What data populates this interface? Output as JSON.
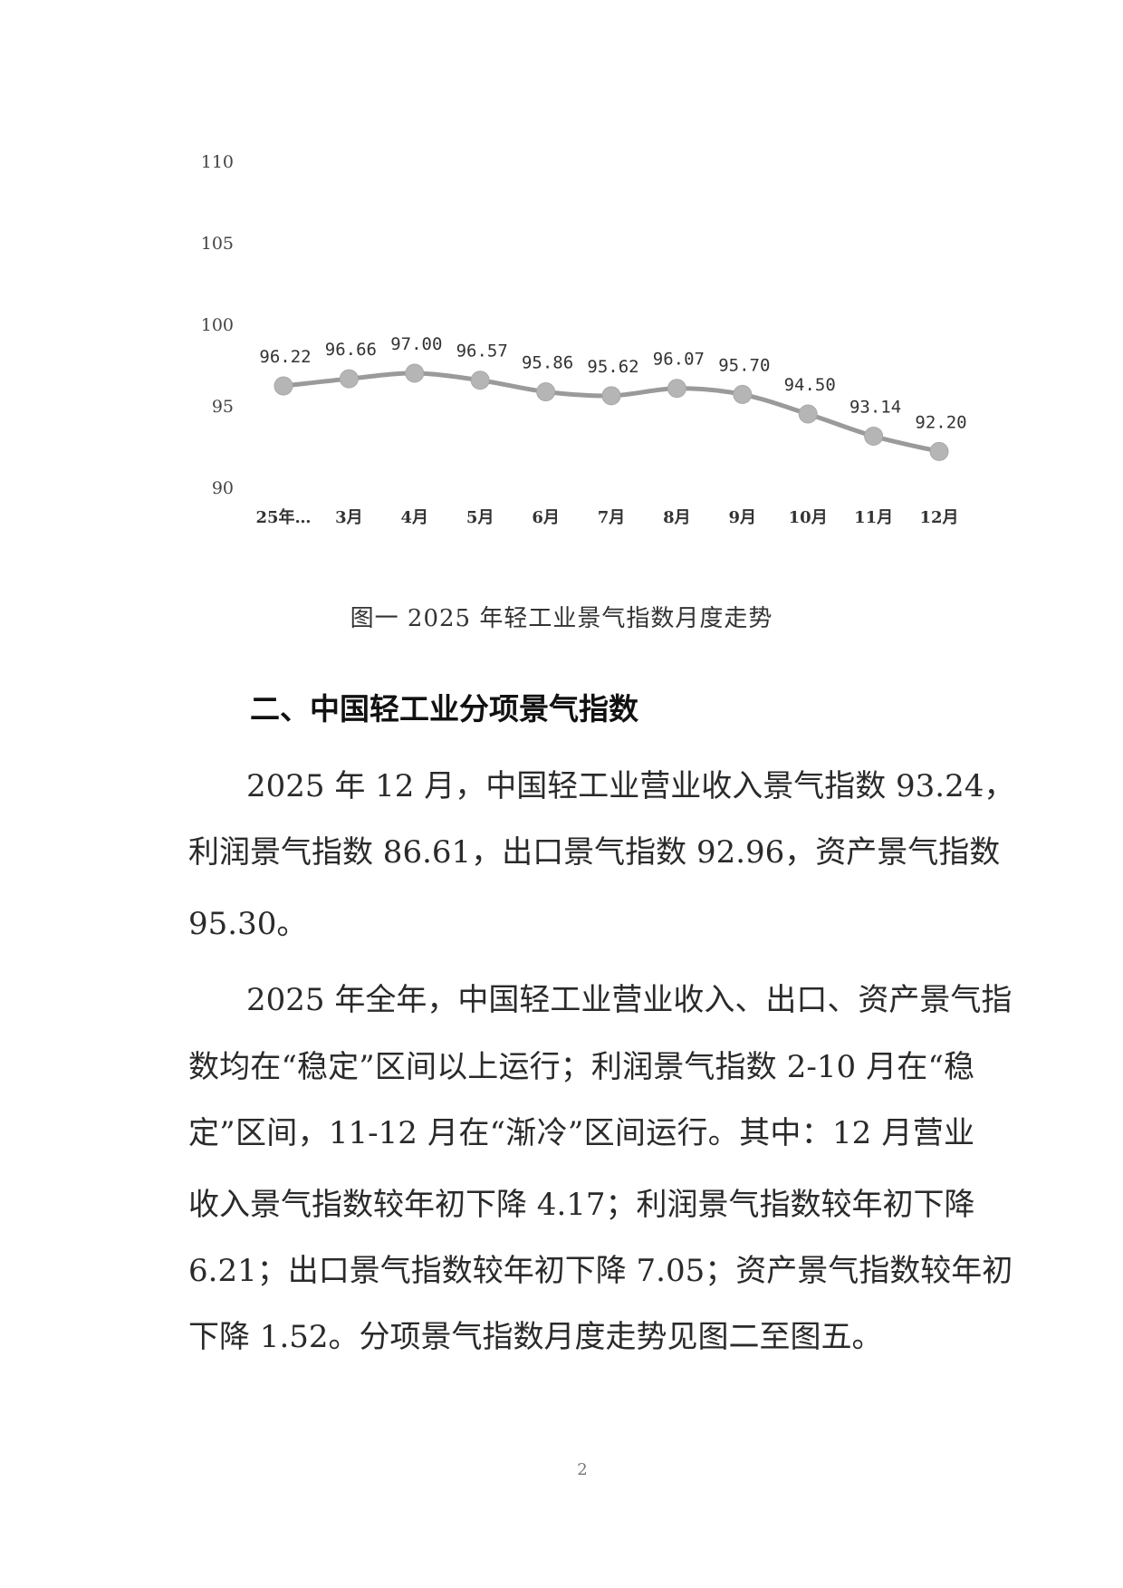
{
  "chart_data": {
    "type": "line",
    "categories": [
      "25年…",
      "3月",
      "4月",
      "5月",
      "6月",
      "7月",
      "8月",
      "9月",
      "10月",
      "11月",
      "12月"
    ],
    "series": [
      {
        "values": [
          96.22,
          96.66,
          97.0,
          96.57,
          95.86,
          95.62,
          96.07,
          95.7,
          94.5,
          93.14,
          92.2
        ]
      }
    ],
    "data_labels": [
      "96.22",
      "96.66",
      "97.00",
      "96.57",
      "95.86",
      "95.62",
      "96.07",
      "95.70",
      "94.50",
      "93.14",
      "92.20"
    ],
    "yticks": [
      "110",
      "105",
      "100",
      "95",
      "90"
    ],
    "ylim": [
      90,
      110
    ],
    "grid": false,
    "line_color": "#9a9a9a",
    "marker_color": "#b5b5b5",
    "title": "图一 2025 年轻工业景气指数月度走势"
  },
  "section_heading": "二、中国轻工业分项景气指数",
  "paragraphs": [
    {
      "lines": [
        "2025 年 12 月，中国轻工业营业收入景气指数 93.24，",
        "利润景气指数 86.61，出口景气指数 92.96，资产景气指数",
        "95.30。"
      ]
    },
    {
      "lines": [
        "2025 年全年，中国轻工业营业收入、出口、资产景气指",
        "数均在“稳定”区间以上运行；利润景气指数 2-10 月在“稳",
        "定”区间，11-12 月在“渐冷”区间运行。其中：12 月营业",
        "收入景气指数较年初下降 4.17；利润景气指数较年初下降",
        "6.21；出口景气指数较年初下降 7.05；资产景气指数较年初",
        "下降 1.52。分项景气指数月度走势见图二至图五。"
      ]
    }
  ],
  "page_number": "2"
}
